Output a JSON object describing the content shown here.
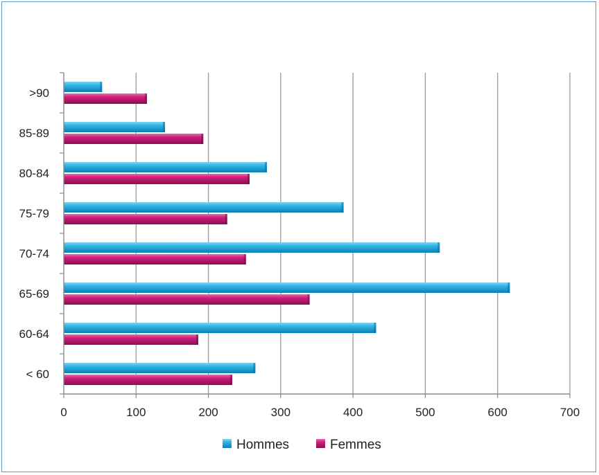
{
  "chart_data": {
    "type": "bar",
    "orientation": "horizontal",
    "categories": [
      "< 60",
      "60-64",
      "65-69",
      "70-74",
      "75-79",
      "80-84",
      "85-89",
      ">90"
    ],
    "series": [
      {
        "name": "Hommes",
        "color": "#1aa3d9",
        "values": [
          265,
          432,
          617,
          520,
          387,
          281,
          140,
          53
        ]
      },
      {
        "name": "Femmes",
        "color": "#c2156f",
        "values": [
          233,
          186,
          340,
          252,
          226,
          257,
          193,
          115
        ]
      }
    ],
    "xlim": [
      0,
      700
    ],
    "xticks": [
      0,
      100,
      200,
      300,
      400,
      500,
      600,
      700
    ],
    "grid": "vertical",
    "legend": "bottom"
  }
}
